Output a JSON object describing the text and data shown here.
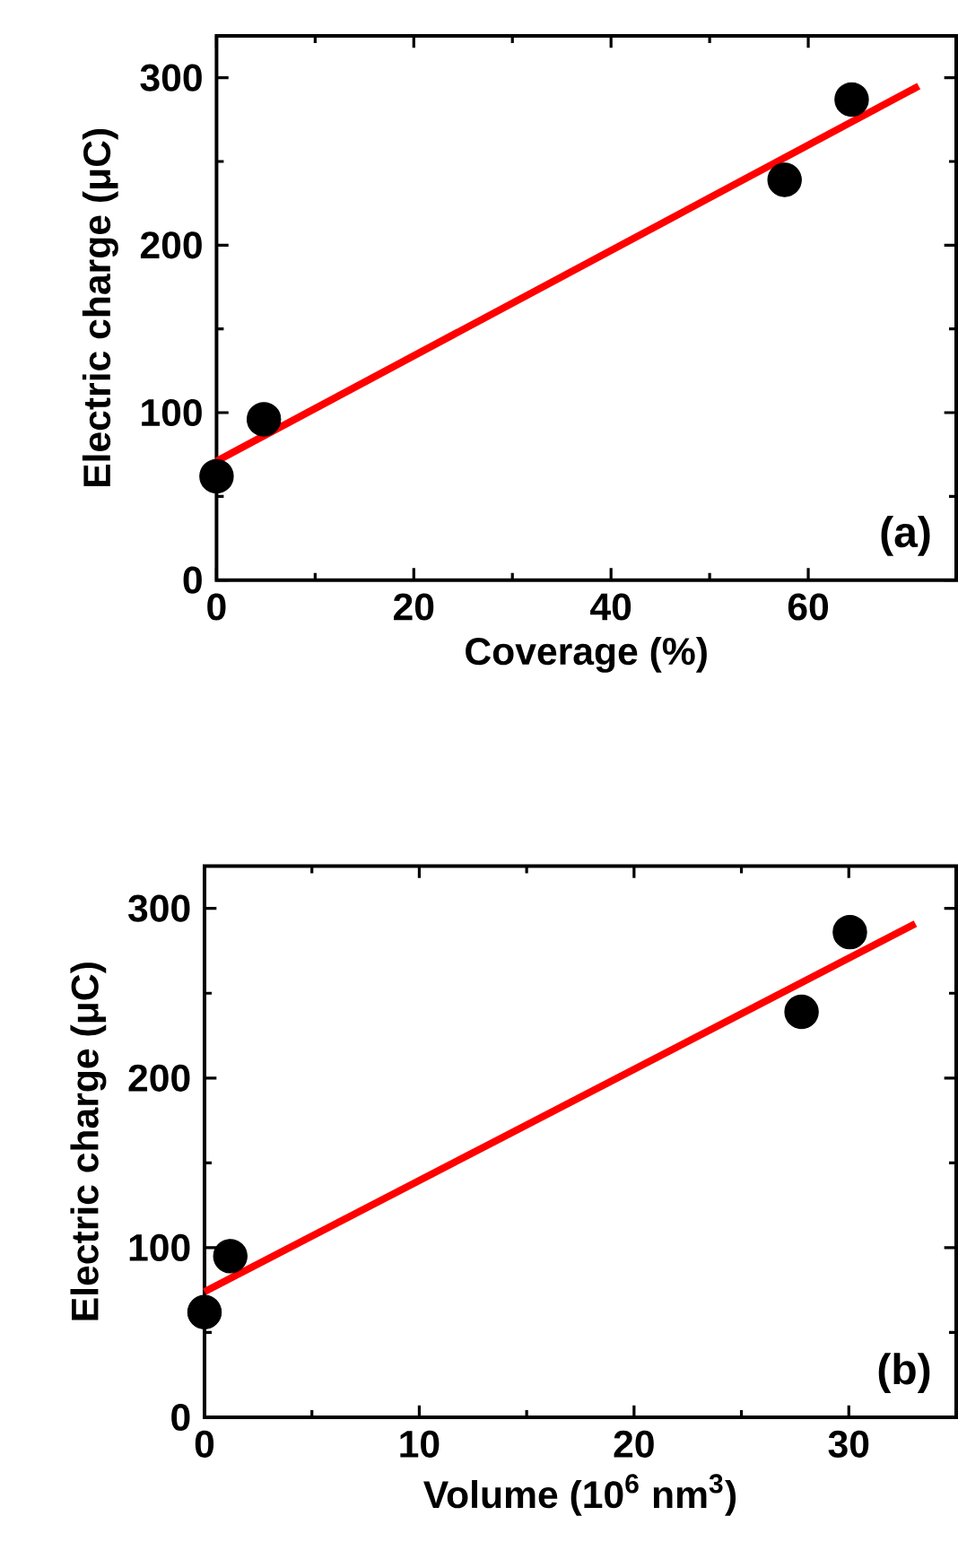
{
  "chart_data": [
    {
      "type": "scatter",
      "xlabel": "Coverage (%)",
      "ylabel": "Electric charge (μC)",
      "xlim": [
        0,
        75
      ],
      "ylim": [
        0,
        325
      ],
      "xticks": [
        0,
        20,
        40,
        60
      ],
      "yticks": [
        0,
        100,
        200,
        300
      ],
      "annotations": [
        "(a)"
      ],
      "series": [
        {
          "marker": "circle",
          "color": "#000000",
          "x": [
            0,
            4.8,
            57.6,
            64.4
          ],
          "values": [
            62,
            96,
            239,
            287
          ]
        },
        {
          "type": "line",
          "color": "#ff0000",
          "x": [
            0,
            71.2
          ],
          "values": [
            71,
            295
          ]
        }
      ]
    },
    {
      "type": "scatter",
      "xlabel": "Volume (10$^{6}$ nm$^{3}$)",
      "ylabel": "Electric charge (μC)",
      "xlim": [
        0,
        35
      ],
      "ylim": [
        0,
        325
      ],
      "xticks": [
        0,
        10,
        20,
        30
      ],
      "yticks": [
        0,
        100,
        200,
        300
      ],
      "annotations": [
        "(b)"
      ],
      "series": [
        {
          "marker": "circle",
          "color": "#000000",
          "x": [
            0,
            1.2,
            27.8,
            30.05
          ],
          "values": [
            62,
            95,
            239,
            286
          ]
        },
        {
          "type": "line",
          "color": "#ff0000",
          "x": [
            0,
            33.1
          ],
          "values": [
            74,
            291
          ]
        }
      ]
    }
  ]
}
